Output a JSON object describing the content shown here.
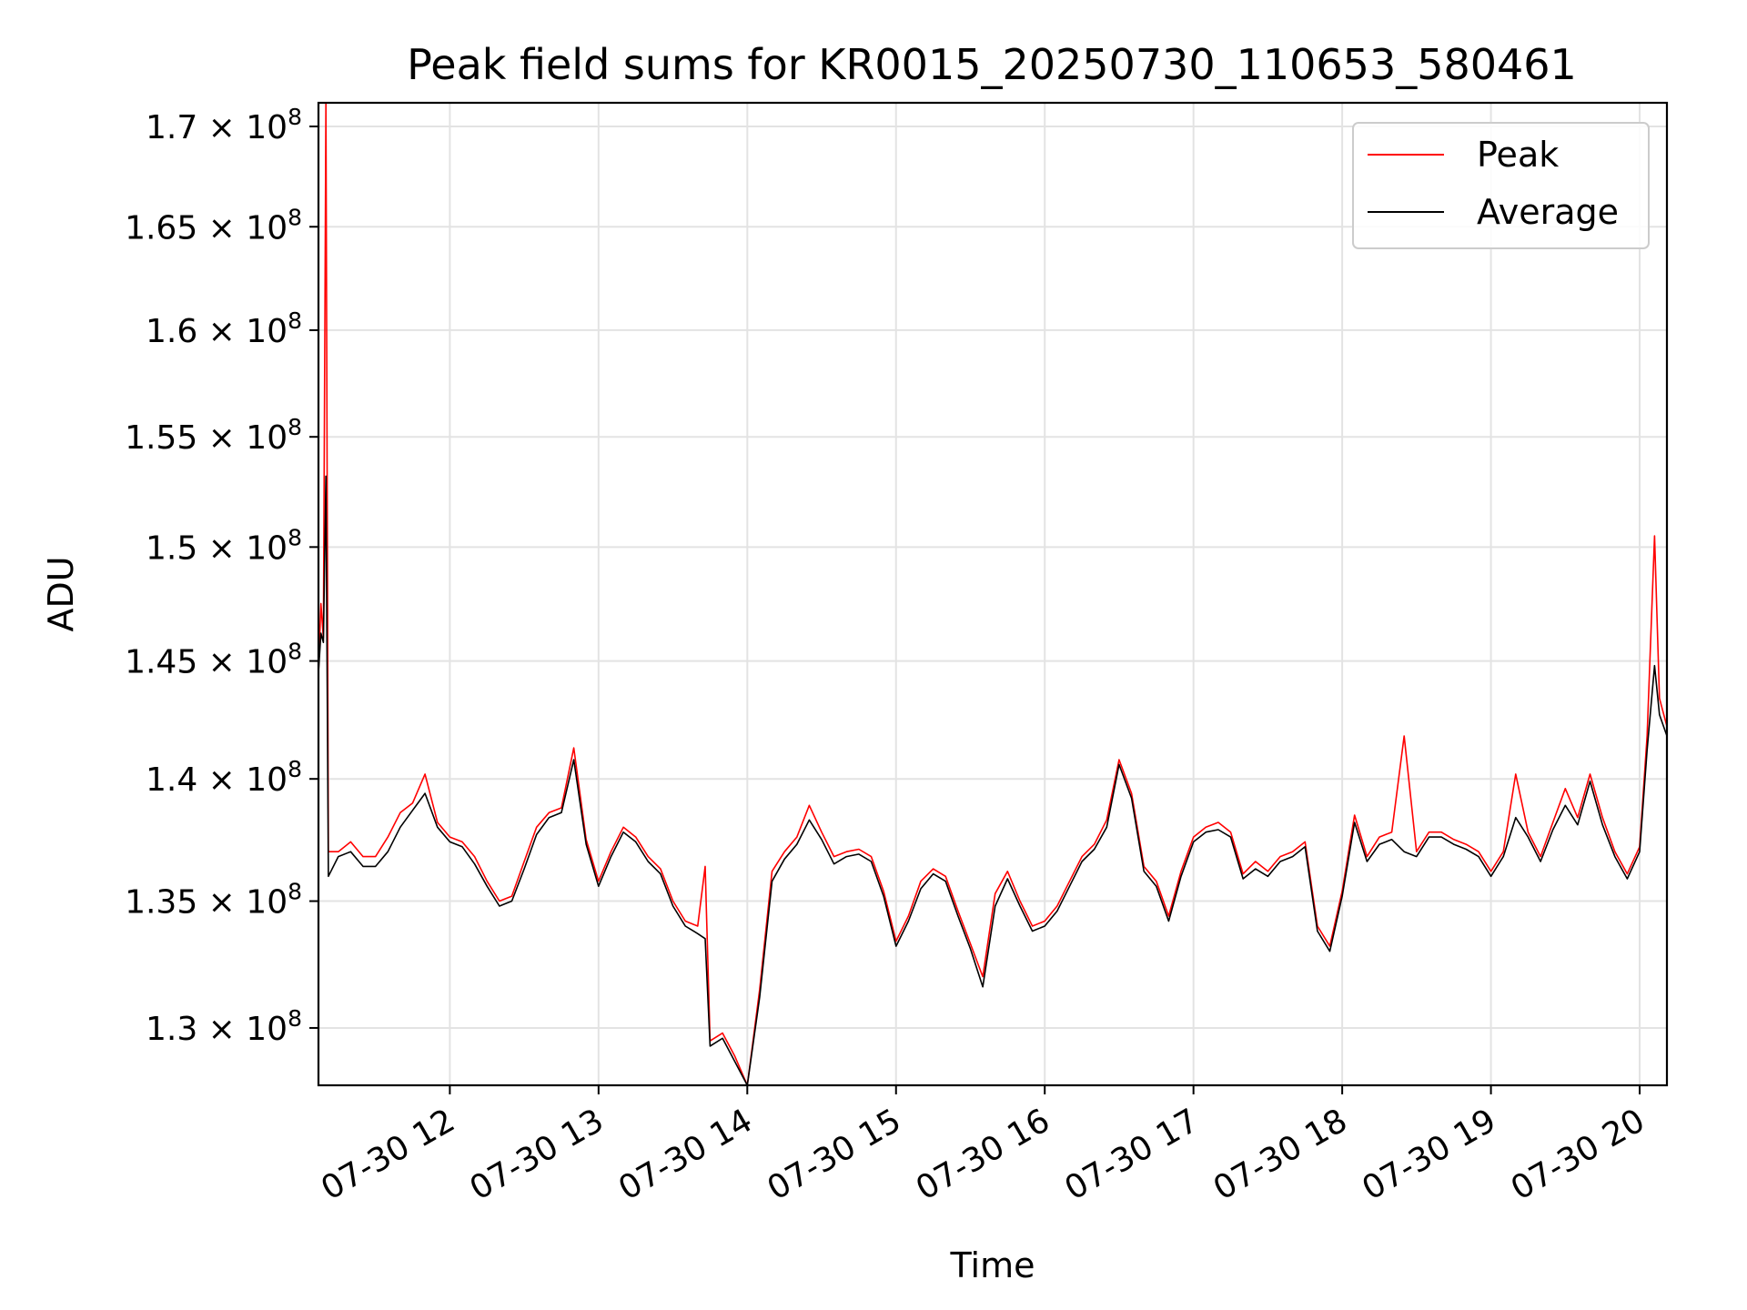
{
  "chart_data": {
    "type": "line",
    "title": "Peak field sums for KR0015_20250730_110653_580461",
    "xlabel": "Time",
    "ylabel": "ADU",
    "x_unit": "time of day on 07-30",
    "xlim": [
      "11:07",
      "20:11"
    ],
    "ylim": [
      127800000,
      171200000
    ],
    "y_scale": "log",
    "x_ticks": [
      {
        "at": "12:00",
        "label": "07-30 12"
      },
      {
        "at": "13:00",
        "label": "07-30 13"
      },
      {
        "at": "14:00",
        "label": "07-30 14"
      },
      {
        "at": "15:00",
        "label": "07-30 15"
      },
      {
        "at": "16:00",
        "label": "07-30 16"
      },
      {
        "at": "17:00",
        "label": "07-30 17"
      },
      {
        "at": "18:00",
        "label": "07-30 18"
      },
      {
        "at": "19:00",
        "label": "07-30 19"
      },
      {
        "at": "20:00",
        "label": "07-30 20"
      }
    ],
    "y_ticks": [
      {
        "value": 130000000,
        "mantissa": "1.3"
      },
      {
        "value": 135000000,
        "mantissa": "1.35"
      },
      {
        "value": 140000000,
        "mantissa": "1.4"
      },
      {
        "value": 145000000,
        "mantissa": "1.45"
      },
      {
        "value": 150000000,
        "mantissa": "1.5"
      },
      {
        "value": 155000000,
        "mantissa": "1.55"
      },
      {
        "value": 160000000,
        "mantissa": "1.6"
      },
      {
        "value": 165000000,
        "mantissa": "1.65"
      },
      {
        "value": 170000000,
        "mantissa": "1.7"
      }
    ],
    "y_tick_times": "× 10",
    "y_tick_exponent": "8",
    "grid": true,
    "legend_position": "top-right",
    "series": [
      {
        "name": "Peak",
        "color": "#ff0000",
        "points": [
          [
            "11:07",
            144500000
          ],
          [
            "11:08",
            147500000
          ],
          [
            "11:09",
            146000000
          ],
          [
            "11:10",
            171200000
          ],
          [
            "11:11",
            137000000
          ],
          [
            "11:15",
            137000000
          ],
          [
            "11:20",
            137400000
          ],
          [
            "11:25",
            136800000
          ],
          [
            "11:30",
            136800000
          ],
          [
            "11:35",
            137600000
          ],
          [
            "11:40",
            138600000
          ],
          [
            "11:45",
            139000000
          ],
          [
            "11:50",
            140200000
          ],
          [
            "11:55",
            138200000
          ],
          [
            "12:00",
            137600000
          ],
          [
            "12:05",
            137400000
          ],
          [
            "12:10",
            136800000
          ],
          [
            "12:15",
            135800000
          ],
          [
            "12:20",
            135000000
          ],
          [
            "12:25",
            135200000
          ],
          [
            "12:30",
            136600000
          ],
          [
            "12:35",
            138000000
          ],
          [
            "12:40",
            138600000
          ],
          [
            "12:45",
            138800000
          ],
          [
            "12:50",
            141300000
          ],
          [
            "12:55",
            137500000
          ],
          [
            "13:00",
            135800000
          ],
          [
            "13:05",
            137000000
          ],
          [
            "13:10",
            138000000
          ],
          [
            "13:15",
            137600000
          ],
          [
            "13:20",
            136800000
          ],
          [
            "13:25",
            136300000
          ],
          [
            "13:30",
            135000000
          ],
          [
            "13:35",
            134200000
          ],
          [
            "13:40",
            134000000
          ],
          [
            "13:43",
            136400000
          ],
          [
            "13:45",
            129500000
          ],
          [
            "13:50",
            129800000
          ],
          [
            "13:55",
            128900000
          ],
          [
            "14:00",
            127800000
          ],
          [
            "14:05",
            131500000
          ],
          [
            "14:10",
            136200000
          ],
          [
            "14:15",
            137000000
          ],
          [
            "14:20",
            137600000
          ],
          [
            "14:25",
            138900000
          ],
          [
            "14:30",
            137800000
          ],
          [
            "14:35",
            136800000
          ],
          [
            "14:40",
            137000000
          ],
          [
            "14:45",
            137100000
          ],
          [
            "14:50",
            136800000
          ],
          [
            "14:55",
            135400000
          ],
          [
            "15:00",
            133400000
          ],
          [
            "15:05",
            134400000
          ],
          [
            "15:10",
            135800000
          ],
          [
            "15:15",
            136300000
          ],
          [
            "15:20",
            136000000
          ],
          [
            "15:25",
            134600000
          ],
          [
            "15:30",
            133300000
          ],
          [
            "15:35",
            132000000
          ],
          [
            "15:40",
            135300000
          ],
          [
            "15:45",
            136200000
          ],
          [
            "15:50",
            135000000
          ],
          [
            "15:55",
            134000000
          ],
          [
            "16:00",
            134200000
          ],
          [
            "16:05",
            134800000
          ],
          [
            "16:10",
            135800000
          ],
          [
            "16:15",
            136800000
          ],
          [
            "16:20",
            137300000
          ],
          [
            "16:25",
            138300000
          ],
          [
            "16:30",
            140800000
          ],
          [
            "16:35",
            139400000
          ],
          [
            "16:40",
            136400000
          ],
          [
            "16:45",
            135800000
          ],
          [
            "16:50",
            134400000
          ],
          [
            "16:55",
            136200000
          ],
          [
            "17:00",
            137600000
          ],
          [
            "17:05",
            138000000
          ],
          [
            "17:10",
            138200000
          ],
          [
            "17:15",
            137800000
          ],
          [
            "17:20",
            136100000
          ],
          [
            "17:25",
            136600000
          ],
          [
            "17:30",
            136200000
          ],
          [
            "17:35",
            136800000
          ],
          [
            "17:40",
            137000000
          ],
          [
            "17:45",
            137400000
          ],
          [
            "17:50",
            134000000
          ],
          [
            "17:55",
            133200000
          ],
          [
            "18:00",
            135400000
          ],
          [
            "18:05",
            138500000
          ],
          [
            "18:10",
            136800000
          ],
          [
            "18:15",
            137600000
          ],
          [
            "18:20",
            137800000
          ],
          [
            "18:25",
            141800000
          ],
          [
            "18:30",
            137000000
          ],
          [
            "18:35",
            137800000
          ],
          [
            "18:40",
            137800000
          ],
          [
            "18:45",
            137500000
          ],
          [
            "18:50",
            137300000
          ],
          [
            "18:55",
            137000000
          ],
          [
            "19:00",
            136200000
          ],
          [
            "19:05",
            137000000
          ],
          [
            "19:10",
            140200000
          ],
          [
            "19:15",
            137800000
          ],
          [
            "19:20",
            136800000
          ],
          [
            "19:25",
            138200000
          ],
          [
            "19:30",
            139600000
          ],
          [
            "19:35",
            138400000
          ],
          [
            "19:40",
            140200000
          ],
          [
            "19:45",
            138400000
          ],
          [
            "19:50",
            137000000
          ],
          [
            "19:55",
            136100000
          ],
          [
            "20:00",
            137200000
          ],
          [
            "20:03",
            141800000
          ],
          [
            "20:06",
            150500000
          ],
          [
            "20:08",
            143400000
          ],
          [
            "20:11",
            142200000
          ]
        ]
      },
      {
        "name": "Average",
        "color": "#000000",
        "points": [
          [
            "11:07",
            144500000
          ],
          [
            "11:08",
            146200000
          ],
          [
            "11:09",
            145800000
          ],
          [
            "11:10",
            153200000
          ],
          [
            "11:11",
            136000000
          ],
          [
            "11:15",
            136800000
          ],
          [
            "11:20",
            137000000
          ],
          [
            "11:25",
            136400000
          ],
          [
            "11:30",
            136400000
          ],
          [
            "11:35",
            137000000
          ],
          [
            "11:40",
            138000000
          ],
          [
            "11:45",
            138700000
          ],
          [
            "11:50",
            139400000
          ],
          [
            "11:55",
            138000000
          ],
          [
            "12:00",
            137400000
          ],
          [
            "12:05",
            137200000
          ],
          [
            "12:10",
            136500000
          ],
          [
            "12:15",
            135600000
          ],
          [
            "12:20",
            134800000
          ],
          [
            "12:25",
            135000000
          ],
          [
            "12:30",
            136300000
          ],
          [
            "12:35",
            137700000
          ],
          [
            "12:40",
            138400000
          ],
          [
            "12:45",
            138600000
          ],
          [
            "12:50",
            140800000
          ],
          [
            "12:55",
            137300000
          ],
          [
            "13:00",
            135600000
          ],
          [
            "13:05",
            136800000
          ],
          [
            "13:10",
            137800000
          ],
          [
            "13:15",
            137400000
          ],
          [
            "13:20",
            136600000
          ],
          [
            "13:25",
            136100000
          ],
          [
            "13:30",
            134800000
          ],
          [
            "13:35",
            134000000
          ],
          [
            "13:40",
            133700000
          ],
          [
            "13:43",
            133500000
          ],
          [
            "13:45",
            129300000
          ],
          [
            "13:50",
            129600000
          ],
          [
            "13:55",
            128700000
          ],
          [
            "14:00",
            127800000
          ],
          [
            "14:05",
            131200000
          ],
          [
            "14:10",
            135800000
          ],
          [
            "14:15",
            136700000
          ],
          [
            "14:20",
            137300000
          ],
          [
            "14:25",
            138300000
          ],
          [
            "14:30",
            137500000
          ],
          [
            "14:35",
            136500000
          ],
          [
            "14:40",
            136800000
          ],
          [
            "14:45",
            136900000
          ],
          [
            "14:50",
            136600000
          ],
          [
            "14:55",
            135200000
          ],
          [
            "15:00",
            133200000
          ],
          [
            "15:05",
            134200000
          ],
          [
            "15:10",
            135500000
          ],
          [
            "15:15",
            136100000
          ],
          [
            "15:20",
            135800000
          ],
          [
            "15:25",
            134400000
          ],
          [
            "15:30",
            133100000
          ],
          [
            "15:35",
            131600000
          ],
          [
            "15:40",
            134800000
          ],
          [
            "15:45",
            135900000
          ],
          [
            "15:50",
            134800000
          ],
          [
            "15:55",
            133800000
          ],
          [
            "16:00",
            134000000
          ],
          [
            "16:05",
            134600000
          ],
          [
            "16:10",
            135600000
          ],
          [
            "16:15",
            136600000
          ],
          [
            "16:20",
            137100000
          ],
          [
            "16:25",
            138000000
          ],
          [
            "16:30",
            140600000
          ],
          [
            "16:35",
            139200000
          ],
          [
            "16:40",
            136200000
          ],
          [
            "16:45",
            135600000
          ],
          [
            "16:50",
            134200000
          ],
          [
            "16:55",
            136000000
          ],
          [
            "17:00",
            137400000
          ],
          [
            "17:05",
            137800000
          ],
          [
            "17:10",
            137900000
          ],
          [
            "17:15",
            137600000
          ],
          [
            "17:20",
            135900000
          ],
          [
            "17:25",
            136300000
          ],
          [
            "17:30",
            136000000
          ],
          [
            "17:35",
            136600000
          ],
          [
            "17:40",
            136800000
          ],
          [
            "17:45",
            137200000
          ],
          [
            "17:50",
            133800000
          ],
          [
            "17:55",
            133000000
          ],
          [
            "18:00",
            135200000
          ],
          [
            "18:05",
            138200000
          ],
          [
            "18:10",
            136600000
          ],
          [
            "18:15",
            137300000
          ],
          [
            "18:20",
            137500000
          ],
          [
            "18:25",
            137000000
          ],
          [
            "18:30",
            136800000
          ],
          [
            "18:35",
            137600000
          ],
          [
            "18:40",
            137600000
          ],
          [
            "18:45",
            137300000
          ],
          [
            "18:50",
            137100000
          ],
          [
            "18:55",
            136800000
          ],
          [
            "19:00",
            136000000
          ],
          [
            "19:05",
            136800000
          ],
          [
            "19:10",
            138400000
          ],
          [
            "19:15",
            137600000
          ],
          [
            "19:20",
            136600000
          ],
          [
            "19:25",
            137900000
          ],
          [
            "19:30",
            138900000
          ],
          [
            "19:35",
            138100000
          ],
          [
            "19:40",
            139900000
          ],
          [
            "19:45",
            138100000
          ],
          [
            "19:50",
            136800000
          ],
          [
            "19:55",
            135900000
          ],
          [
            "20:00",
            137000000
          ],
          [
            "20:03",
            141200000
          ],
          [
            "20:06",
            144800000
          ],
          [
            "20:08",
            142700000
          ],
          [
            "20:11",
            141800000
          ]
        ]
      }
    ]
  }
}
